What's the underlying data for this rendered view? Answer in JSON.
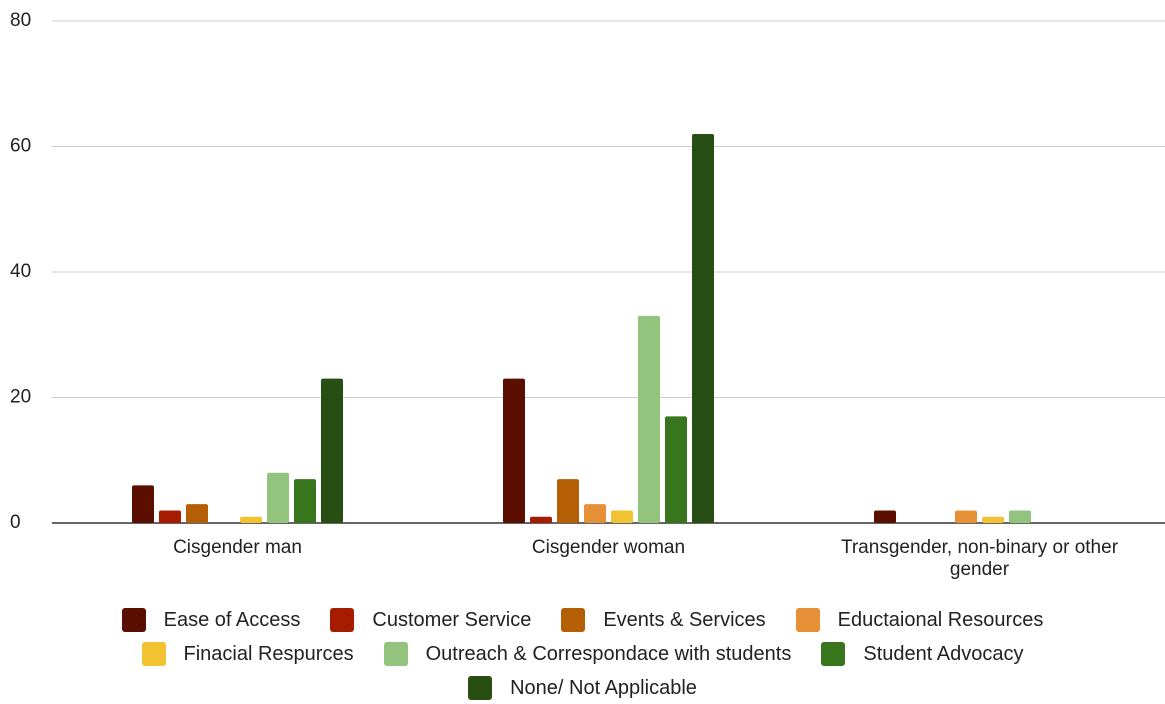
{
  "chart_data": {
    "type": "bar",
    "categories": [
      "Cisgender man",
      "Cisgender woman",
      "Transgender, non-binary or other gender"
    ],
    "series": [
      {
        "name": "Ease of Access",
        "color": "#5b0f00",
        "values": [
          6,
          23,
          2
        ]
      },
      {
        "name": "Customer Service",
        "color": "#a61c00",
        "values": [
          2,
          1,
          0
        ]
      },
      {
        "name": "Events & Services",
        "color": "#b45f06",
        "values": [
          3,
          7,
          0
        ]
      },
      {
        "name": "Eductaional Resources",
        "color": "#e69138",
        "values": [
          0,
          3,
          2
        ]
      },
      {
        "name": "Finacial Respurces",
        "color": "#f1c232",
        "values": [
          1,
          2,
          1
        ]
      },
      {
        "name": "Outreach & Correspondace with students",
        "color": "#93c47d",
        "values": [
          8,
          33,
          2
        ]
      },
      {
        "name": "Student Advocacy",
        "color": "#38761d",
        "values": [
          7,
          17,
          0
        ]
      },
      {
        "name": "None/ Not Applicable",
        "color": "#274e13",
        "values": [
          23,
          62,
          0
        ]
      }
    ],
    "ylim": [
      0,
      80
    ],
    "yticks": [
      0,
      20,
      40,
      60,
      80
    ],
    "grid": true,
    "legend": "bottom"
  }
}
